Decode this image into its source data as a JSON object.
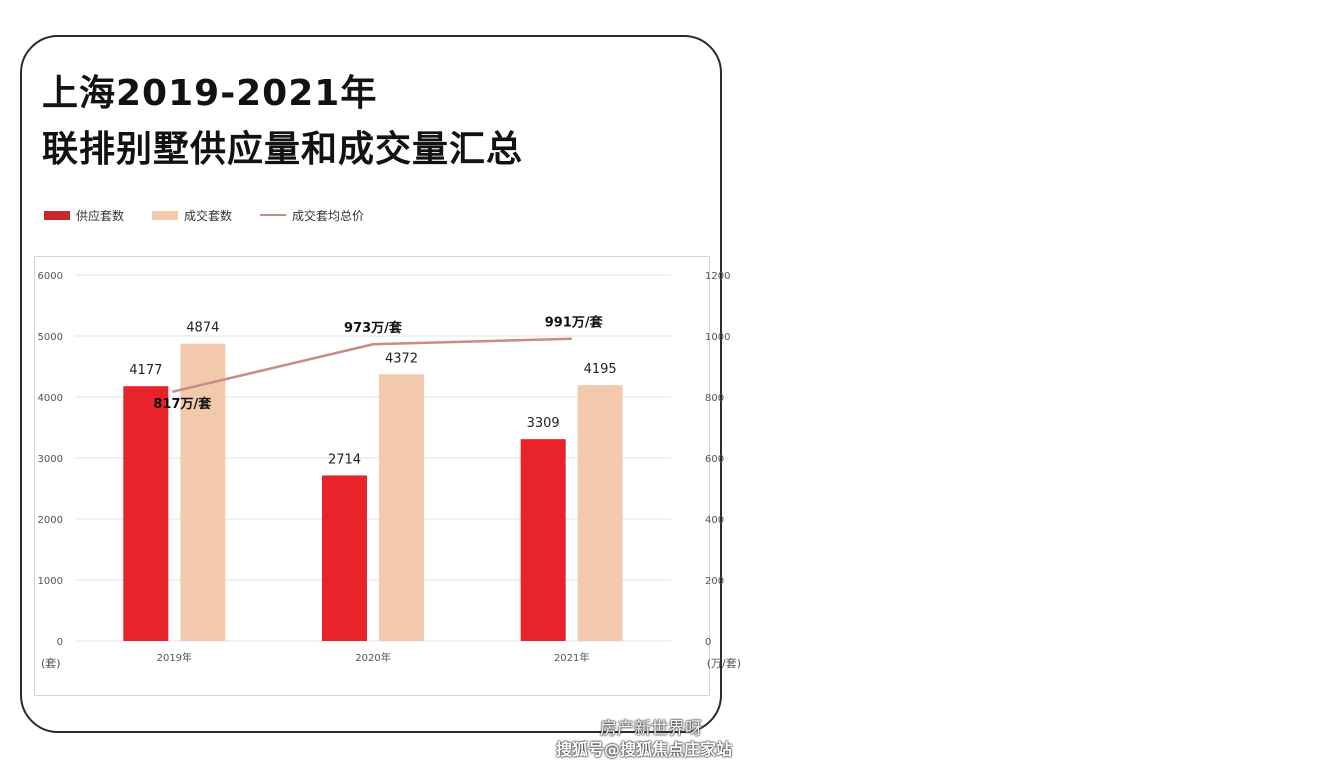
{
  "header": {
    "title_line1": "上海2019-2021年",
    "title_line2": "联排别墅供应量和成交量汇总"
  },
  "colors": {
    "supply": "#e8232a",
    "deal": "#f3c9ad",
    "price_line": "#c88b85",
    "grid": "#e3e3e3",
    "axis_text": "#555555"
  },
  "chart_data": {
    "type": "bar",
    "title": "上海2019-2021年 联排别墅供应量和成交量汇总",
    "categories": [
      "2019年",
      "2020年",
      "2021年"
    ],
    "series": [
      {
        "name": "供应套数",
        "type": "bar",
        "axis": "left",
        "values": [
          4177,
          2714,
          3309
        ]
      },
      {
        "name": "成交套数",
        "type": "bar",
        "axis": "left",
        "values": [
          4874,
          4372,
          4195
        ]
      },
      {
        "name": "成交套均总价",
        "type": "line",
        "axis": "right",
        "values": [
          817,
          973,
          991
        ],
        "labels": [
          "817万/套",
          "973万/套",
          "991万/套"
        ]
      }
    ],
    "left_axis": {
      "min": 0,
      "max": 6000,
      "ticks": [
        "0",
        "1000",
        "2000",
        "3000",
        "4000",
        "5000",
        "6000"
      ],
      "unit": "(套)"
    },
    "right_axis": {
      "min": 0,
      "max": 1200,
      "ticks": [
        "0",
        "200",
        "400",
        "600",
        "800",
        "1000",
        "1200"
      ],
      "unit": "(万/套)"
    },
    "grid": true,
    "legend_position": "top-left"
  },
  "watermark": {
    "line1": "房产新世界呀",
    "line2": "搜狐号@搜狐焦点庄家站"
  }
}
